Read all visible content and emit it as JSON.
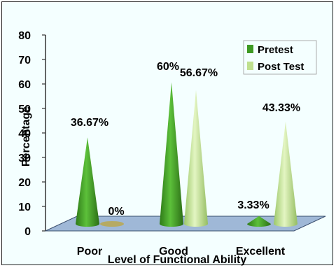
{
  "colors": {
    "pretest": "#3e9a23",
    "posttest": "#bfe08e",
    "floor": "#9fb8d7",
    "floor_edge": "#3a4f6e",
    "background": "#f4ffff"
  },
  "chart_data": {
    "type": "bar",
    "shape": "cone-3d",
    "categories": [
      "Poor",
      "Good",
      "Excellent"
    ],
    "series": [
      {
        "name": "Pretest",
        "values": [
          36.67,
          60,
          3.33
        ],
        "labels": [
          "36.67%",
          "60%",
          "3.33%"
        ]
      },
      {
        "name": "Post Test",
        "values": [
          0,
          56.67,
          43.33
        ],
        "labels": [
          "0%",
          "56.67%",
          "43.33%"
        ]
      }
    ],
    "xlabel": "Level of Functional Ability",
    "ylabel": "Percentage",
    "ylim": [
      0,
      80
    ],
    "yticks": [
      "0",
      "10",
      "20",
      "30",
      "40",
      "50",
      "60",
      "70",
      "80"
    ],
    "legend": "top-right",
    "grid": false
  }
}
